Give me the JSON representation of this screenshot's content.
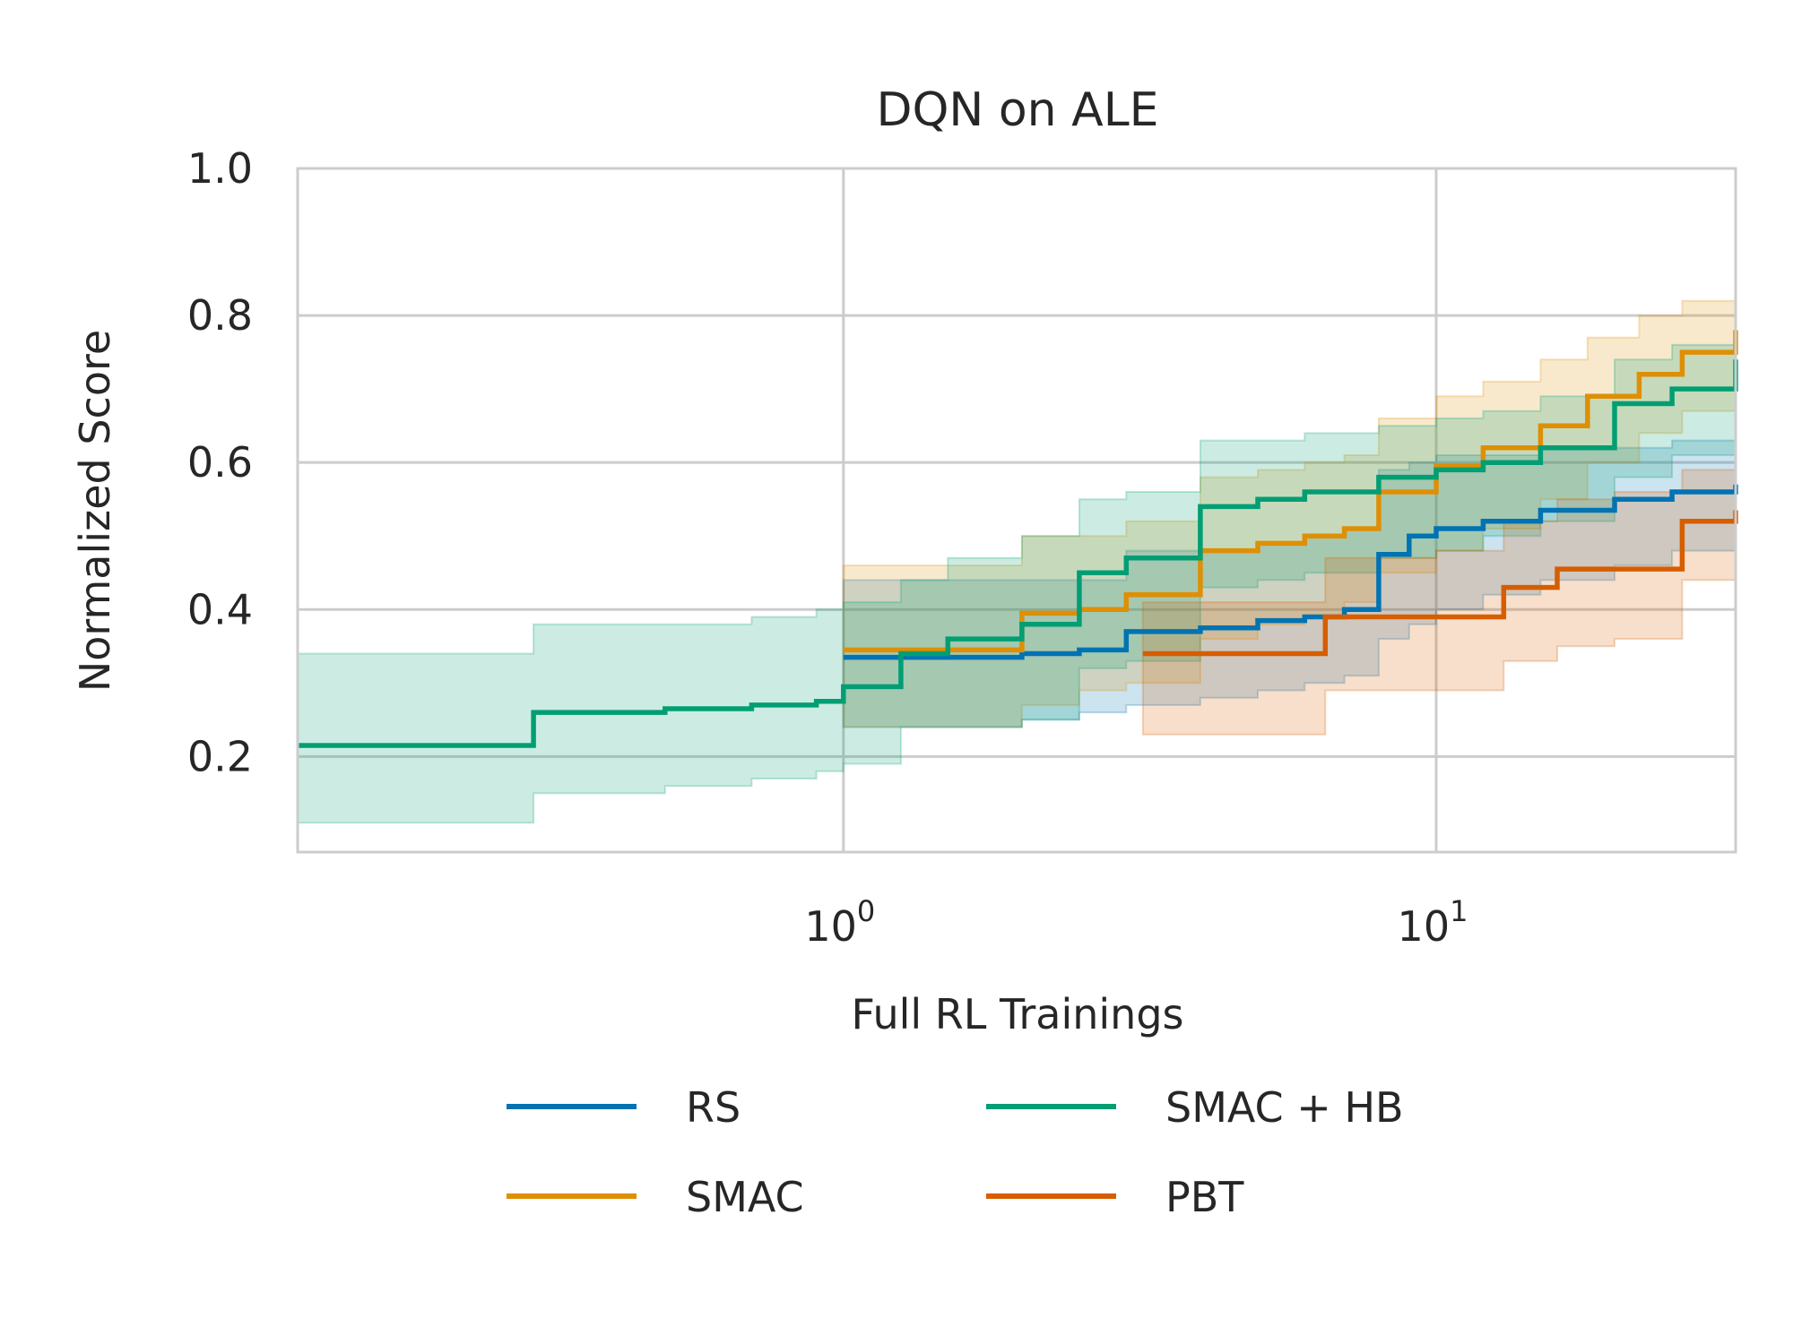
{
  "chart_data": {
    "type": "line",
    "title": "DQN on ALE",
    "xlabel": "Full RL Trainings",
    "ylabel": "Normalized Score",
    "xscale": "log",
    "xlim": [
      0.12,
      32
    ],
    "ylim": [
      0.07,
      1.0
    ],
    "yticks": [
      "0.2",
      "0.4",
      "0.6",
      "0.8",
      "1.0"
    ],
    "xticks": [
      {
        "base": "10",
        "exp": "0",
        "value": 1
      },
      {
        "base": "10",
        "exp": "1",
        "value": 10
      }
    ],
    "grid": true,
    "legend": {
      "placement": "bottom",
      "columns": 2
    },
    "series": [
      {
        "name": "RS",
        "color": "#0173b2",
        "x": [
          1.0,
          1.5,
          2.0,
          2.5,
          3.0,
          4.0,
          5.0,
          6.0,
          7.0,
          8.0,
          9.0,
          10.0,
          12.0,
          15.0,
          20.0,
          25.0,
          32.0
        ],
        "y": [
          0.335,
          0.335,
          0.34,
          0.345,
          0.37,
          0.375,
          0.385,
          0.39,
          0.4,
          0.475,
          0.5,
          0.51,
          0.52,
          0.535,
          0.55,
          0.56,
          0.57
        ],
        "lower": [
          0.24,
          0.24,
          0.25,
          0.26,
          0.27,
          0.28,
          0.29,
          0.3,
          0.31,
          0.36,
          0.38,
          0.4,
          0.42,
          0.44,
          0.46,
          0.48,
          0.5
        ],
        "upper": [
          0.44,
          0.44,
          0.44,
          0.44,
          0.48,
          0.48,
          0.49,
          0.5,
          0.51,
          0.59,
          0.6,
          0.61,
          0.61,
          0.62,
          0.62,
          0.63,
          0.63
        ]
      },
      {
        "name": "SMAC",
        "color": "#de8f05",
        "x": [
          1.0,
          1.5,
          2.0,
          2.5,
          3.0,
          4.0,
          5.0,
          6.0,
          7.0,
          8.0,
          10.0,
          12.0,
          15.0,
          18.0,
          22.0,
          26.0,
          32.0
        ],
        "y": [
          0.345,
          0.345,
          0.395,
          0.4,
          0.42,
          0.48,
          0.49,
          0.5,
          0.51,
          0.56,
          0.595,
          0.62,
          0.65,
          0.69,
          0.72,
          0.75,
          0.78
        ],
        "lower": [
          0.24,
          0.24,
          0.27,
          0.29,
          0.3,
          0.36,
          0.38,
          0.39,
          0.41,
          0.45,
          0.48,
          0.51,
          0.55,
          0.6,
          0.64,
          0.67,
          0.7
        ],
        "upper": [
          0.46,
          0.46,
          0.5,
          0.5,
          0.52,
          0.58,
          0.59,
          0.6,
          0.61,
          0.66,
          0.69,
          0.71,
          0.74,
          0.77,
          0.8,
          0.82,
          0.84
        ]
      },
      {
        "name": "SMAC + HB",
        "color": "#029e73",
        "x": [
          0.12,
          0.2,
          0.3,
          0.5,
          0.7,
          0.9,
          1.0,
          1.25,
          1.5,
          2.0,
          2.5,
          3.0,
          4.0,
          5.0,
          6.0,
          8.0,
          10.0,
          12.0,
          15.0,
          20.0,
          25.0,
          32.0
        ],
        "y": [
          0.215,
          0.215,
          0.26,
          0.265,
          0.27,
          0.275,
          0.295,
          0.34,
          0.36,
          0.38,
          0.45,
          0.47,
          0.54,
          0.55,
          0.56,
          0.58,
          0.59,
          0.6,
          0.62,
          0.68,
          0.7,
          0.74
        ],
        "lower": [
          0.11,
          0.11,
          0.15,
          0.16,
          0.17,
          0.18,
          0.19,
          0.24,
          0.24,
          0.25,
          0.32,
          0.33,
          0.43,
          0.44,
          0.45,
          0.47,
          0.48,
          0.5,
          0.52,
          0.58,
          0.61,
          0.66
        ],
        "upper": [
          0.34,
          0.34,
          0.38,
          0.38,
          0.39,
          0.4,
          0.41,
          0.44,
          0.47,
          0.5,
          0.55,
          0.56,
          0.63,
          0.63,
          0.64,
          0.65,
          0.66,
          0.67,
          0.69,
          0.74,
          0.76,
          0.8
        ]
      },
      {
        "name": "PBT",
        "color": "#d55e00",
        "x": [
          3.2,
          5.0,
          6.5,
          8.0,
          10.0,
          13.0,
          16.0,
          20.0,
          26.0,
          32.0
        ],
        "y": [
          0.34,
          0.34,
          0.39,
          0.39,
          0.39,
          0.43,
          0.455,
          0.455,
          0.52,
          0.535
        ],
        "lower": [
          0.23,
          0.23,
          0.29,
          0.29,
          0.29,
          0.33,
          0.35,
          0.36,
          0.44,
          0.45
        ],
        "upper": [
          0.41,
          0.41,
          0.47,
          0.47,
          0.48,
          0.52,
          0.55,
          0.56,
          0.59,
          0.6
        ]
      }
    ]
  }
}
